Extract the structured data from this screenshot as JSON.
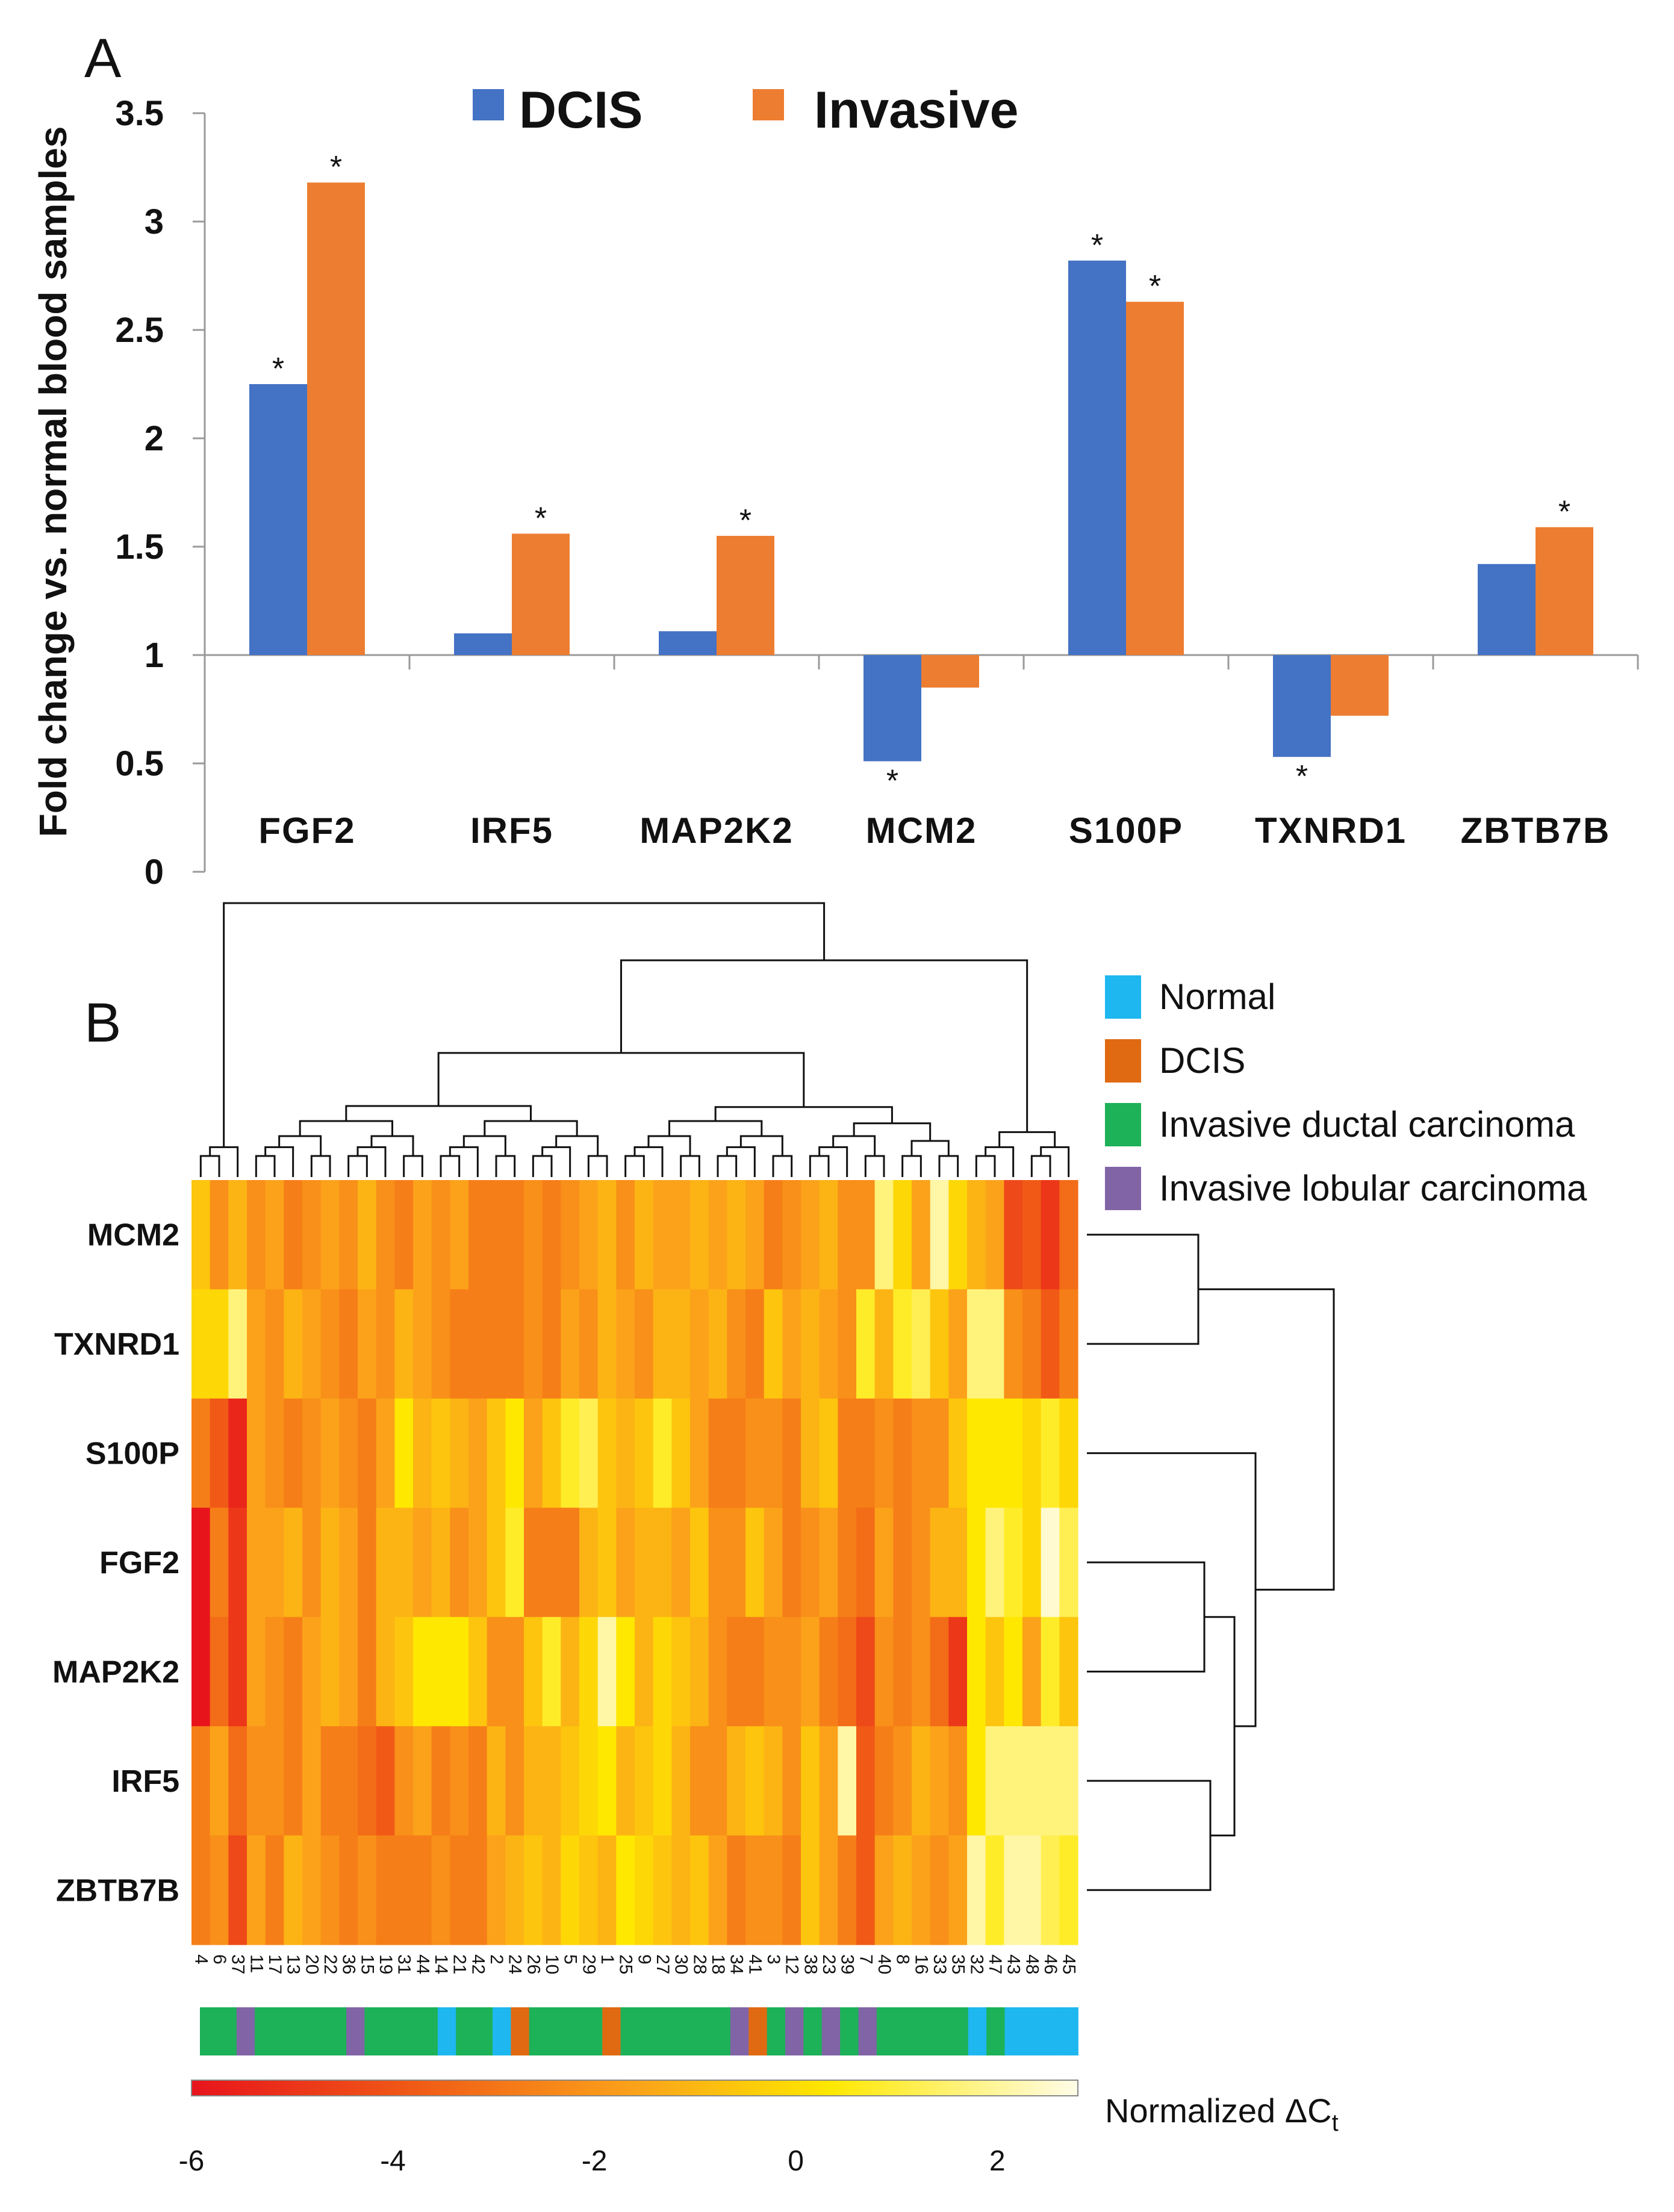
{
  "chart_data": [
    {
      "type": "bar",
      "panel_label": "A",
      "ylabel": "Fold change vs. normal blood samples",
      "ylim": [
        0,
        3.5
      ],
      "baseline": 1,
      "yticks": [
        "0",
        "0.5",
        "1",
        "1.5",
        "2",
        "2.5",
        "3",
        "3.5"
      ],
      "categories": [
        "FGF2",
        "IRF5",
        "MAP2K2",
        "MCM2",
        "S100P",
        "TXNRD1",
        "ZBTB7B"
      ],
      "series": [
        {
          "name": "DCIS",
          "color": "#4472C4",
          "values": [
            2.25,
            1.1,
            1.11,
            0.51,
            2.82,
            0.53,
            1.42
          ],
          "significant": [
            true,
            false,
            false,
            true,
            true,
            true,
            false
          ]
        },
        {
          "name": "Invasive",
          "color": "#ED7D31",
          "values": [
            3.18,
            1.56,
            1.55,
            0.85,
            2.63,
            0.72,
            1.59
          ],
          "significant": [
            true,
            true,
            true,
            false,
            true,
            false,
            true
          ]
        }
      ],
      "significance_marker": "*",
      "legend_position": "top"
    },
    {
      "type": "heatmap",
      "panel_label": "B",
      "rows": [
        "MCM2",
        "TXNRD1",
        "S100P",
        "FGF2",
        "MAP2K2",
        "IRF5",
        "ZBTB7B"
      ],
      "columns": [
        "4",
        "6",
        "37",
        "11",
        "17",
        "13",
        "20",
        "22",
        "36",
        "15",
        "19",
        "31",
        "44",
        "14",
        "21",
        "42",
        "2",
        "24",
        "26",
        "10",
        "5",
        "29",
        "1",
        "25",
        "9",
        "27",
        "30",
        "28",
        "18",
        "34",
        "41",
        "3",
        "12",
        "38",
        "23",
        "39",
        "7",
        "40",
        "8",
        "16",
        "33",
        "35",
        "32",
        "47",
        "43",
        "48",
        "46",
        "45"
      ],
      "column_groups": [
        "idc",
        "idc",
        "ilc",
        "idc",
        "idc",
        "idc",
        "idc",
        "idc",
        "ilc",
        "idc",
        "idc",
        "idc",
        "idc",
        "normal",
        "idc",
        "idc",
        "normal",
        "dcis",
        "idc",
        "idc",
        "idc",
        "idc",
        "dcis",
        "idc",
        "idc",
        "idc",
        "idc",
        "idc",
        "idc",
        "ilc",
        "dcis",
        "idc",
        "ilc",
        "idc",
        "ilc",
        "idc",
        "ilc",
        "idc",
        "idc",
        "idc",
        "idc",
        "idc",
        "normal",
        "idc",
        "normal",
        "normal",
        "normal",
        "normal"
      ],
      "values": [
        [
          -1.0,
          -2.5,
          -1.5,
          -2.5,
          -2.0,
          -3.0,
          -2.5,
          -2.0,
          -2.5,
          -1.5,
          -2.5,
          -3.0,
          -2.0,
          -2.5,
          -2.0,
          -3.0,
          -3.0,
          -3.0,
          -2.5,
          -3.0,
          -2.5,
          -2.0,
          -1.5,
          -2.5,
          -1.5,
          -2.0,
          -2.0,
          -1.5,
          -2.0,
          -1.5,
          -2.0,
          -3.0,
          -2.5,
          -2.0,
          -1.5,
          -2.5,
          -2.5,
          1.5,
          -0.5,
          -2.0,
          2.0,
          -0.5,
          -1.5,
          -2.0,
          -4.5,
          -4.0,
          -5.0,
          -3.5
        ],
        [
          -0.5,
          -0.5,
          1.5,
          -2.0,
          -2.5,
          -1.5,
          -2.0,
          -2.5,
          -3.0,
          -2.0,
          -2.5,
          -1.5,
          -2.0,
          -2.5,
          -3.0,
          -3.0,
          -3.0,
          -3.0,
          -2.5,
          -3.0,
          -2.0,
          -2.5,
          -1.5,
          -2.0,
          -2.5,
          -1.5,
          -1.5,
          -2.0,
          -1.5,
          -2.5,
          -3.0,
          -1.0,
          -2.0,
          -1.5,
          -2.0,
          -2.5,
          0.5,
          -1.5,
          0.5,
          1.0,
          -1.0,
          -2.0,
          1.5,
          1.5,
          -2.5,
          -3.0,
          -4.0,
          -3.0
        ],
        [
          -3.0,
          -4.0,
          -5.5,
          -2.0,
          -2.5,
          -3.0,
          -2.5,
          -2.0,
          -2.5,
          -3.0,
          -2.0,
          0.0,
          -1.5,
          -1.0,
          -1.5,
          -2.0,
          -1.0,
          0.0,
          -2.0,
          -1.0,
          0.5,
          1.0,
          -1.0,
          -1.5,
          -1.0,
          0.5,
          -1.0,
          -2.0,
          -3.0,
          -3.0,
          -2.5,
          -2.5,
          -3.0,
          -1.5,
          -1.0,
          -3.0,
          -3.0,
          -2.5,
          -3.0,
          -2.5,
          -2.5,
          -1.0,
          0.0,
          0.0,
          0.0,
          -0.5,
          0.5,
          -0.5
        ],
        [
          -6.0,
          -3.0,
          -5.0,
          -2.0,
          -2.0,
          -1.5,
          -2.5,
          -1.5,
          -2.0,
          -3.0,
          -1.5,
          -1.5,
          -2.0,
          -1.5,
          -2.5,
          -2.0,
          -1.0,
          0.5,
          -3.0,
          -3.0,
          -3.0,
          -1.5,
          -1.0,
          -2.0,
          -1.5,
          -1.5,
          -2.0,
          -1.0,
          -2.5,
          -2.5,
          -1.0,
          -2.0,
          -3.0,
          -2.5,
          -2.0,
          -3.0,
          -3.5,
          -2.0,
          -3.0,
          -2.5,
          -1.5,
          -1.5,
          0.0,
          1.5,
          0.5,
          -0.5,
          2.5,
          1.0
        ],
        [
          -6.0,
          -3.5,
          -5.0,
          -2.0,
          -2.5,
          -3.0,
          -2.0,
          -1.5,
          -2.0,
          -3.0,
          -1.5,
          -1.0,
          0.0,
          0.0,
          0.0,
          -1.0,
          -2.5,
          -2.5,
          -1.0,
          0.5,
          -1.5,
          -0.5,
          2.0,
          0.0,
          -1.5,
          -0.5,
          -1.0,
          -1.5,
          -2.5,
          -3.0,
          -3.0,
          -2.5,
          -2.5,
          -2.0,
          -3.0,
          -3.5,
          -4.5,
          -2.5,
          -3.0,
          -2.5,
          -3.5,
          -5.0,
          0.0,
          -1.0,
          0.0,
          -2.0,
          0.5,
          -1.0
        ],
        [
          -3.0,
          -2.0,
          -3.5,
          -2.5,
          -2.5,
          -3.0,
          -2.0,
          -3.0,
          -3.0,
          -3.5,
          -4.0,
          -2.5,
          -2.0,
          -3.0,
          -2.5,
          -3.0,
          -1.5,
          -2.5,
          -1.5,
          -1.5,
          -1.0,
          -0.5,
          0.0,
          -1.5,
          -1.0,
          -0.5,
          -1.5,
          -2.5,
          -2.5,
          -1.5,
          -1.0,
          -1.5,
          -2.5,
          -1.0,
          -2.0,
          2.0,
          -4.0,
          -3.0,
          -2.5,
          -1.5,
          -2.0,
          -2.5,
          0.0,
          1.5,
          1.5,
          1.5,
          1.5,
          1.5
        ],
        [
          -3.0,
          -2.5,
          -4.5,
          -2.0,
          -3.0,
          -1.5,
          -2.0,
          -2.5,
          -3.0,
          -2.5,
          -3.0,
          -3.0,
          -3.0,
          -2.5,
          -3.0,
          -3.0,
          -2.0,
          -1.5,
          -1.0,
          -1.5,
          -0.5,
          -1.0,
          -1.5,
          0.0,
          -0.5,
          -1.0,
          -1.5,
          -1.0,
          -2.0,
          -3.0,
          -2.5,
          -2.5,
          -3.0,
          -1.0,
          -2.0,
          -3.0,
          -4.0,
          -2.0,
          -1.5,
          -2.0,
          -2.5,
          -2.0,
          2.0,
          0.5,
          2.0,
          2.0,
          1.0,
          0.5
        ]
      ],
      "legend": [
        {
          "key": "normal",
          "label": "Normal",
          "color": "#1EB7F0"
        },
        {
          "key": "dcis",
          "label": "DCIS",
          "color": "#E06A12"
        },
        {
          "key": "idc",
          "label": "Invasive ductal carcinoma",
          "color": "#1DB158"
        },
        {
          "key": "ilc",
          "label": "Invasive lobular carcinoma",
          "color": "#8164A6"
        }
      ],
      "colorbar": {
        "label": "Normalized ΔC",
        "label_sub": "t",
        "range": [
          -6,
          2.8
        ],
        "ticks": [
          "-6",
          "-4",
          "-2",
          "0",
          "2"
        ],
        "tick_values": [
          -6,
          -4,
          -2,
          0,
          2
        ]
      }
    }
  ]
}
